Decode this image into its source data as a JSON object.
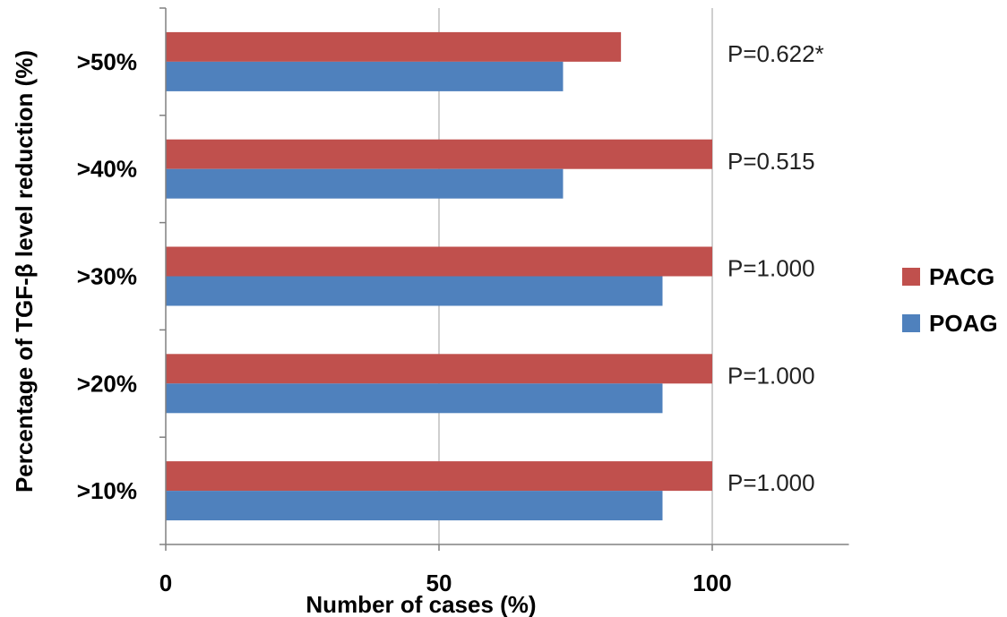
{
  "chart_data": {
    "type": "bar",
    "orientation": "horizontal",
    "categories": [
      ">50%",
      ">40%",
      ">30%",
      ">20%",
      ">10%"
    ],
    "series": [
      {
        "name": "PACG",
        "color": "#C0504D",
        "values": [
          83.3,
          100,
          100,
          100,
          100
        ]
      },
      {
        "name": "POAG",
        "color": "#4F81BD",
        "values": [
          72.7,
          72.7,
          90.9,
          90.9,
          90.9
        ]
      }
    ],
    "annotations": [
      "P=0.622*",
      "P=0.515",
      "P=1.000",
      "P=1.000",
      "P=1.000"
    ],
    "xlabel": "Number of cases (%)",
    "ylabel": "Percentage of TGF-β level reduction (%)",
    "xlim": [
      0,
      125
    ],
    "xticks": [
      0,
      50,
      100
    ],
    "xtick_labels": [
      "0",
      "50",
      "100"
    ],
    "grid": "vertical",
    "legend_position": "right"
  }
}
